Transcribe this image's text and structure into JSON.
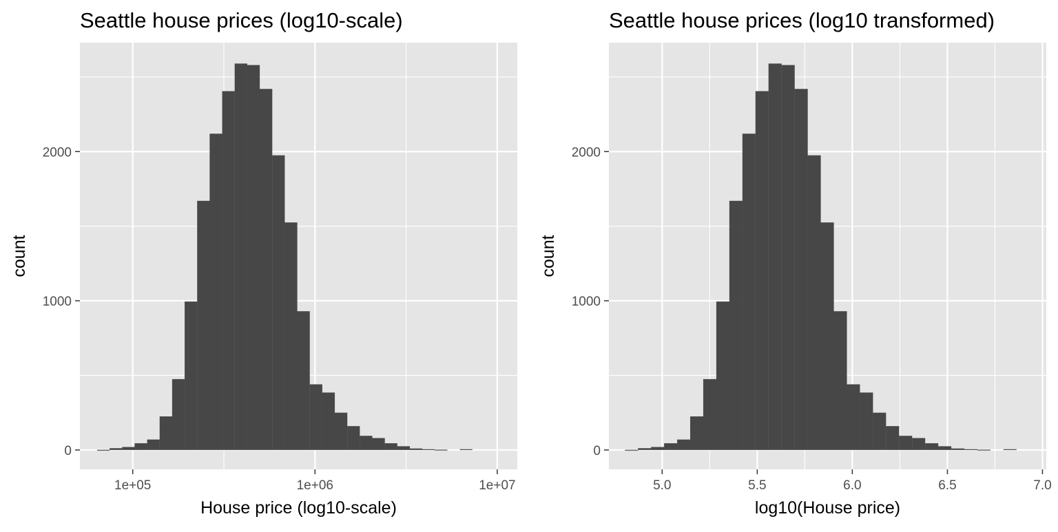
{
  "chart_data": [
    {
      "type": "histogram",
      "title": "Seattle house prices (log10-scale)",
      "xlabel": "House price (log10-scale)",
      "ylabel": "count",
      "x_scale": "log10",
      "x_ticks": [
        100000,
        1000000,
        10000000
      ],
      "x_tick_labels": [
        "1e+05",
        "1e+06",
        "1e+07"
      ],
      "x_minor_ticks": [
        316228,
        3162278
      ],
      "xlim": [
        51300,
        12880000
      ],
      "y_ticks": [
        0,
        1000,
        2000
      ],
      "y_tick_labels": [
        "0",
        "1000",
        "2000"
      ],
      "y_minor_ticks": [
        500,
        1500,
        2500
      ],
      "ylim": [
        -130,
        2730
      ],
      "grid": true,
      "bin_width_log10": 0.0691,
      "bins": {
        "x_center": [
          69024,
          80839,
          94676,
          110882,
          129862,
          152091,
          178125,
          208616,
          244326,
          286148,
          335130,
          392496,
          459682,
          538368,
          630523,
          738454,
          864860,
          1012905,
          1186291,
          1389352,
          1627174,
          1905704,
          2231910,
          2613958,
          3061406,
          3585445,
          4199187,
          4917989,
          5759830,
          6745773,
          7900554
        ],
        "count": [
          1,
          12,
          20,
          45,
          70,
          225,
          475,
          995,
          1670,
          2120,
          2405,
          2590,
          2580,
          2420,
          1975,
          1525,
          930,
          440,
          385,
          250,
          160,
          95,
          80,
          45,
          25,
          10,
          5,
          2,
          0,
          5,
          0
        ]
      }
    },
    {
      "type": "histogram",
      "title": "Seattle house prices (log10 transformed)",
      "xlabel": "log10(House price)",
      "ylabel": "count",
      "x_scale": "linear",
      "x_ticks": [
        5.0,
        5.5,
        6.0,
        6.5,
        7.0
      ],
      "x_tick_labels": [
        "5.0",
        "5.5",
        "6.0",
        "6.5",
        "7.0"
      ],
      "x_minor_ticks": [
        5.25,
        5.75,
        6.25,
        6.75
      ],
      "xlim": [
        4.72,
        7.02
      ],
      "y_ticks": [
        0,
        1000,
        2000
      ],
      "y_tick_labels": [
        "0",
        "1000",
        "2000"
      ],
      "y_minor_ticks": [
        500,
        1500,
        2500
      ],
      "ylim": [
        -130,
        2730
      ],
      "grid": true,
      "bin_width": 0.0691,
      "bins": {
        "x_center": [
          4.839,
          4.9076,
          4.9762,
          5.0448,
          5.1134,
          5.182,
          5.2506,
          5.3193,
          5.3879,
          5.4566,
          5.5252,
          5.5938,
          5.6625,
          5.7311,
          5.7997,
          5.8684,
          5.937,
          6.0056,
          6.0742,
          6.1428,
          6.2115,
          6.2801,
          6.3487,
          6.4174,
          6.486,
          6.5546,
          6.6232,
          6.6918,
          6.7605,
          6.8291,
          6.8977
        ],
        "count": [
          1,
          12,
          20,
          45,
          70,
          225,
          475,
          995,
          1670,
          2120,
          2405,
          2590,
          2580,
          2420,
          1975,
          1525,
          930,
          440,
          385,
          250,
          160,
          95,
          80,
          45,
          25,
          10,
          5,
          2,
          0,
          5,
          0
        ]
      }
    }
  ],
  "colors": {
    "panel_background": "#E5E5E5",
    "grid": "#FFFFFF",
    "bar_fill": "#474747",
    "axis_text": "#4D4D4D",
    "title_text": "#000000"
  }
}
